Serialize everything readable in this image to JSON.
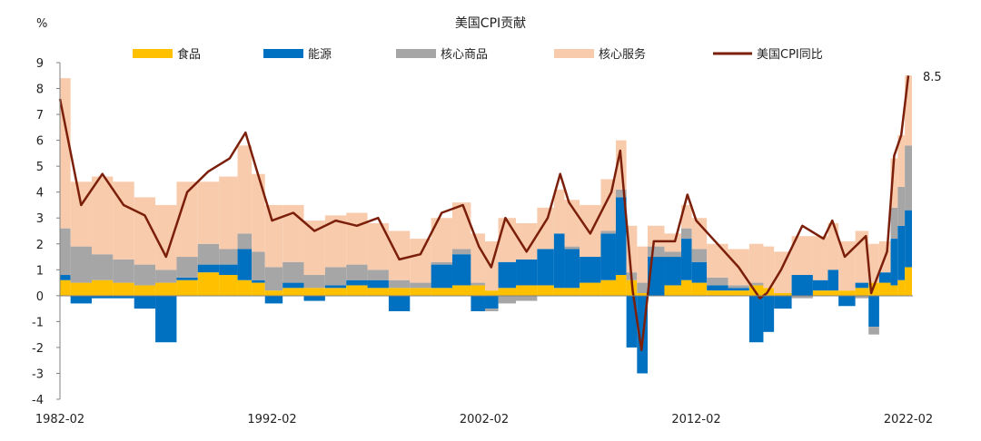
{
  "chart_data": {
    "type": "area",
    "title": "美国CPI贡献",
    "ylabel": "%",
    "ylim": [
      -4,
      9
    ],
    "yticks": [
      "9",
      "8",
      "7",
      "6",
      "5",
      "4",
      "3",
      "2",
      "1",
      "0",
      "-1",
      "-2",
      "-3",
      "-4"
    ],
    "xticks": [
      "1982-02",
      "1992-02",
      "2002-02",
      "2012-02",
      "2022-02"
    ],
    "x_range": [
      "1982-02",
      "2022-02"
    ],
    "grid": false,
    "legend_position": "top",
    "last_value_label": "8.5",
    "colors": {
      "food": "#FFC000",
      "energy": "#0070C0",
      "core_goods": "#A6A6A6",
      "core_services": "#F8CBAD",
      "cpi_line": "#7B1F0A"
    },
    "series": [
      {
        "name": "食品",
        "key": "food",
        "kind": "stack"
      },
      {
        "name": "能源",
        "key": "energy",
        "kind": "stack"
      },
      {
        "name": "核心商品",
        "key": "core_goods",
        "kind": "stack"
      },
      {
        "name": "核心服务",
        "key": "core_services",
        "kind": "stack"
      },
      {
        "name": "美国CPI同比",
        "key": "cpi_line",
        "kind": "line"
      }
    ],
    "sample_dates": [
      "1982-02",
      "1983-02",
      "1984-02",
      "1985-02",
      "1986-02",
      "1987-02",
      "1988-02",
      "1989-02",
      "1990-02",
      "1990-11",
      "1991-06",
      "1992-02",
      "1993-02",
      "1994-02",
      "1995-02",
      "1996-02",
      "1997-02",
      "1998-02",
      "1999-02",
      "2000-02",
      "2001-02",
      "2001-11",
      "2002-06",
      "2003-02",
      "2004-02",
      "2005-02",
      "2005-09",
      "2006-02",
      "2007-02",
      "2008-02",
      "2008-07",
      "2009-02",
      "2009-07",
      "2010-02",
      "2011-02",
      "2011-09",
      "2012-02",
      "2013-02",
      "2014-02",
      "2015-02",
      "2015-06",
      "2016-02",
      "2017-02",
      "2018-02",
      "2018-07",
      "2019-02",
      "2020-02",
      "2020-05",
      "2021-02",
      "2021-06",
      "2021-10",
      "2022-02"
    ],
    "values": {
      "food": [
        0.6,
        0.5,
        0.6,
        0.5,
        0.4,
        0.5,
        0.6,
        0.9,
        0.8,
        0.6,
        0.5,
        0.2,
        0.3,
        0.3,
        0.3,
        0.4,
        0.3,
        0.3,
        0.3,
        0.3,
        0.4,
        0.4,
        0.2,
        0.3,
        0.4,
        0.4,
        0.3,
        0.3,
        0.5,
        0.6,
        0.8,
        0.6,
        0.1,
        0.0,
        0.4,
        0.6,
        0.5,
        0.2,
        0.2,
        0.4,
        0.3,
        0.1,
        0.0,
        0.2,
        0.2,
        0.2,
        0.3,
        0.5,
        0.5,
        0.4,
        0.6,
        1.1
      ],
      "energy": [
        0.2,
        -0.3,
        -0.1,
        -0.1,
        -0.5,
        -1.8,
        0.1,
        0.3,
        0.4,
        1.2,
        0.1,
        -0.3,
        0.2,
        -0.2,
        0.1,
        0.2,
        0.3,
        -0.6,
        0.0,
        0.9,
        1.2,
        -0.6,
        -0.5,
        1.0,
        1.0,
        1.4,
        2.1,
        1.5,
        1.0,
        1.8,
        3.0,
        -2.0,
        -3.0,
        1.5,
        1.1,
        1.6,
        0.8,
        0.2,
        0.1,
        -1.8,
        -1.4,
        -0.5,
        0.8,
        0.4,
        0.8,
        -0.4,
        0.2,
        -1.2,
        0.4,
        1.8,
        2.1,
        2.2
      ],
      "core_goods": [
        1.8,
        1.4,
        1.0,
        0.9,
        0.8,
        0.5,
        0.8,
        0.8,
        0.6,
        0.6,
        1.1,
        0.9,
        0.8,
        0.5,
        0.7,
        0.6,
        0.4,
        0.3,
        0.2,
        0.1,
        0.2,
        0.1,
        -0.1,
        -0.3,
        -0.2,
        0.0,
        0.0,
        0.1,
        0.0,
        0.1,
        0.3,
        0.3,
        0.4,
        0.4,
        0.2,
        0.4,
        0.5,
        0.3,
        0.1,
        0.1,
        0.0,
        0.0,
        -0.1,
        0.0,
        0.0,
        0.0,
        -0.1,
        -0.3,
        0.0,
        1.2,
        1.5,
        2.5
      ],
      "core_services": [
        5.8,
        2.5,
        3.0,
        3.0,
        2.6,
        2.5,
        2.9,
        2.4,
        2.8,
        3.4,
        3.0,
        2.4,
        2.2,
        2.1,
        2.0,
        2.0,
        1.8,
        1.9,
        1.7,
        1.7,
        1.8,
        1.9,
        1.9,
        1.7,
        1.4,
        1.6,
        1.7,
        1.8,
        2.0,
        2.0,
        1.9,
        1.8,
        1.4,
        0.8,
        0.7,
        0.9,
        1.2,
        1.3,
        1.4,
        1.5,
        1.6,
        1.6,
        1.5,
        1.7,
        1.8,
        1.9,
        2.0,
        1.5,
        1.2,
        1.9,
        2.0,
        2.7
      ],
      "cpi_line": [
        7.6,
        3.5,
        4.7,
        3.5,
        3.1,
        1.5,
        4.0,
        4.8,
        5.3,
        6.3,
        4.7,
        2.9,
        3.2,
        2.5,
        2.9,
        2.7,
        3.0,
        1.4,
        1.6,
        3.2,
        3.5,
        1.9,
        1.1,
        3.0,
        1.7,
        3.0,
        4.7,
        3.6,
        2.4,
        4.0,
        5.6,
        0.2,
        -2.1,
        2.1,
        2.1,
        3.9,
        2.9,
        2.0,
        1.1,
        -0.1,
        0.1,
        1.0,
        2.7,
        2.2,
        2.9,
        1.5,
        2.3,
        0.1,
        1.7,
        5.4,
        6.2,
        8.5
      ]
    }
  }
}
